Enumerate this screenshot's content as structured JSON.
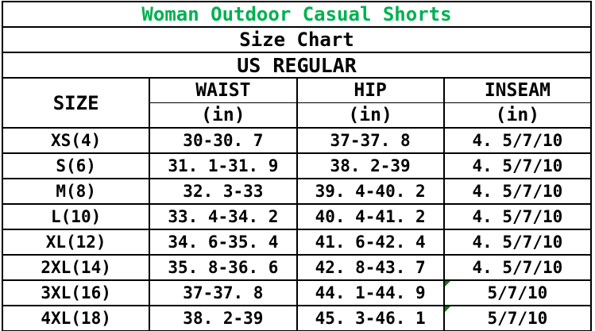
{
  "colors": {
    "title_green": "#00B050",
    "flag_triangle_green": "#008000",
    "border_black": "#000000",
    "background": "#ffffff"
  },
  "chart_data": {
    "type": "table",
    "title": "Woman Outdoor Casual Shorts",
    "subtitle": "Size Chart",
    "fit_label": "US REGULAR",
    "corner_header": "SIZE",
    "columns": [
      {
        "label": "WAIST",
        "unit": "(in)"
      },
      {
        "label": "HIP",
        "unit": "(in)"
      },
      {
        "label": "INSEAM",
        "unit": "(in)"
      }
    ],
    "rows": [
      {
        "size": "XS(4)",
        "waist": "30-30. 7",
        "hip": "37-37. 8",
        "inseam": "4. 5/7/10",
        "flagged": false
      },
      {
        "size": "S(6)",
        "waist": "31. 1-31. 9",
        "hip": "38. 2-39",
        "inseam": "4. 5/7/10",
        "flagged": false
      },
      {
        "size": "M(8)",
        "waist": "32. 3-33",
        "hip": "39. 4-40. 2",
        "inseam": "4. 5/7/10",
        "flagged": false
      },
      {
        "size": "L(10)",
        "waist": "33. 4-34. 2",
        "hip": "40. 4-41. 2",
        "inseam": "4. 5/7/10",
        "flagged": false
      },
      {
        "size": "XL(12)",
        "waist": "34. 6-35. 4",
        "hip": "41. 6-42. 4",
        "inseam": "4. 5/7/10",
        "flagged": false
      },
      {
        "size": "2XL(14)",
        "waist": "35. 8-36. 6",
        "hip": "42. 8-43. 7",
        "inseam": "4. 5/7/10",
        "flagged": false
      },
      {
        "size": "3XL(16)",
        "waist": "37-37. 8",
        "hip": "44. 1-44. 9",
        "inseam": "5/7/10",
        "flagged": true
      },
      {
        "size": "4XL(18)",
        "waist": "38. 2-39",
        "hip": "45. 3-46. 1",
        "inseam": "5/7/10",
        "flagged": true
      }
    ]
  }
}
